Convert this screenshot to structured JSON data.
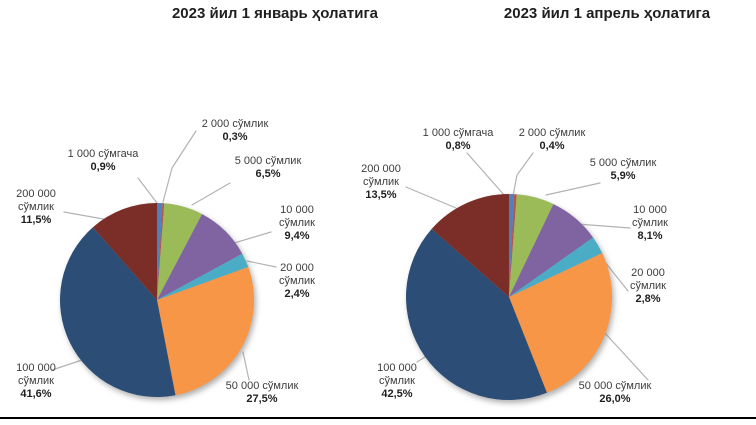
{
  "chart_data": [
    {
      "type": "pie",
      "title": "2023 йил 1 январь ҳолатига",
      "categories": [
        "1 000 сўмгача",
        "2 000 сўмлик",
        "5 000 сўмлик",
        "10 000 сўмлик",
        "20 000 сўмлик",
        "50 000 сўмлик",
        "100 000 сўмлик",
        "200 000 сўмлик"
      ],
      "values": [
        0.9,
        0.3,
        6.5,
        9.4,
        2.4,
        27.5,
        41.6,
        11.5
      ],
      "pct_labels": [
        "0,9%",
        "0,3%",
        "6,5%",
        "9,4%",
        "2,4%",
        "27,5%",
        "41,6%",
        "11,5%"
      ],
      "colors": [
        "#4f81bd",
        "#c0504d",
        "#9bbb59",
        "#8064a2",
        "#4bacc6",
        "#f79646",
        "#2c4d75",
        "#7b2d27"
      ],
      "start_angle_deg": 0,
      "direction": "clockwise",
      "legend": "none",
      "label_style": "outside callouts with gray leader lines; percent bold"
    },
    {
      "type": "pie",
      "title": "2023 йил 1 апрель ҳолатига",
      "categories": [
        "1 000 сўмгача",
        "2 000 сўмлик",
        "5 000 сўмлик",
        "10 000 сўмлик",
        "20 000 сўмлик",
        "50 000 сўмлик",
        "100 000 сўмлик",
        "200 000 сўмлик"
      ],
      "values": [
        0.8,
        0.4,
        5.9,
        8.1,
        2.8,
        26.0,
        42.5,
        13.5
      ],
      "pct_labels": [
        "0,8%",
        "0,4%",
        "5,9%",
        "8,1%",
        "2,8%",
        "26,0%",
        "42,5%",
        "13,5%"
      ],
      "colors": [
        "#4f81bd",
        "#c0504d",
        "#9bbb59",
        "#8064a2",
        "#4bacc6",
        "#f79646",
        "#2c4d75",
        "#7b2d27"
      ],
      "start_angle_deg": 0,
      "direction": "clockwise",
      "legend": "none",
      "label_style": "outside callouts with gray leader lines; percent bold"
    }
  ]
}
